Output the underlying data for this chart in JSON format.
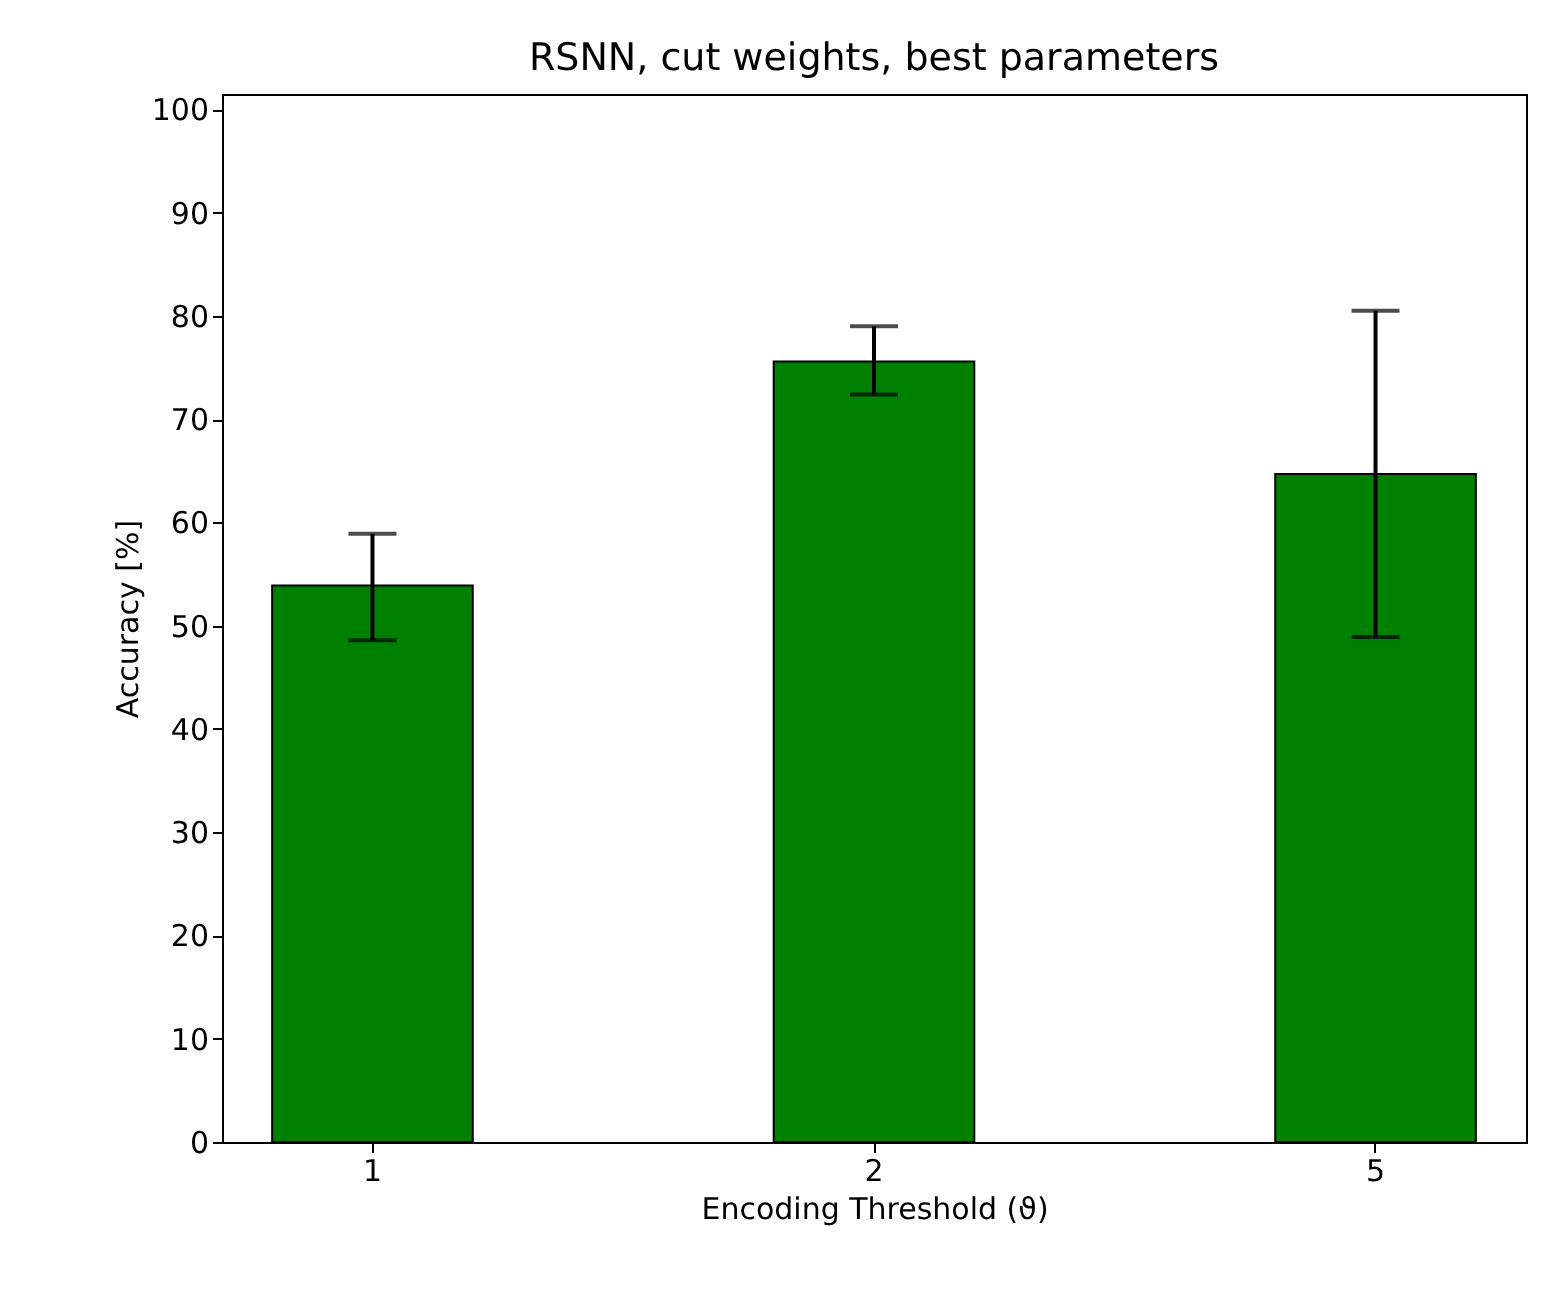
{
  "chart_data": {
    "type": "bar",
    "title": "RSNN, cut weights, best parameters",
    "xlabel": "Encoding Threshold (ϑ)",
    "ylabel": "Accuracy [%]",
    "categories": [
      "1",
      "2",
      "5"
    ],
    "values": [
      53.9,
      75.6,
      64.7
    ],
    "color": "#008000",
    "errors": [
      [
        48.6,
        58.9
      ],
      [
        72.4,
        79.0
      ],
      [
        48.9,
        80.5
      ]
    ],
    "ylim": [
      0,
      101.5
    ],
    "yticks": [
      0,
      10,
      20,
      30,
      40,
      50,
      60,
      70,
      80,
      90,
      100
    ],
    "grid": false
  }
}
